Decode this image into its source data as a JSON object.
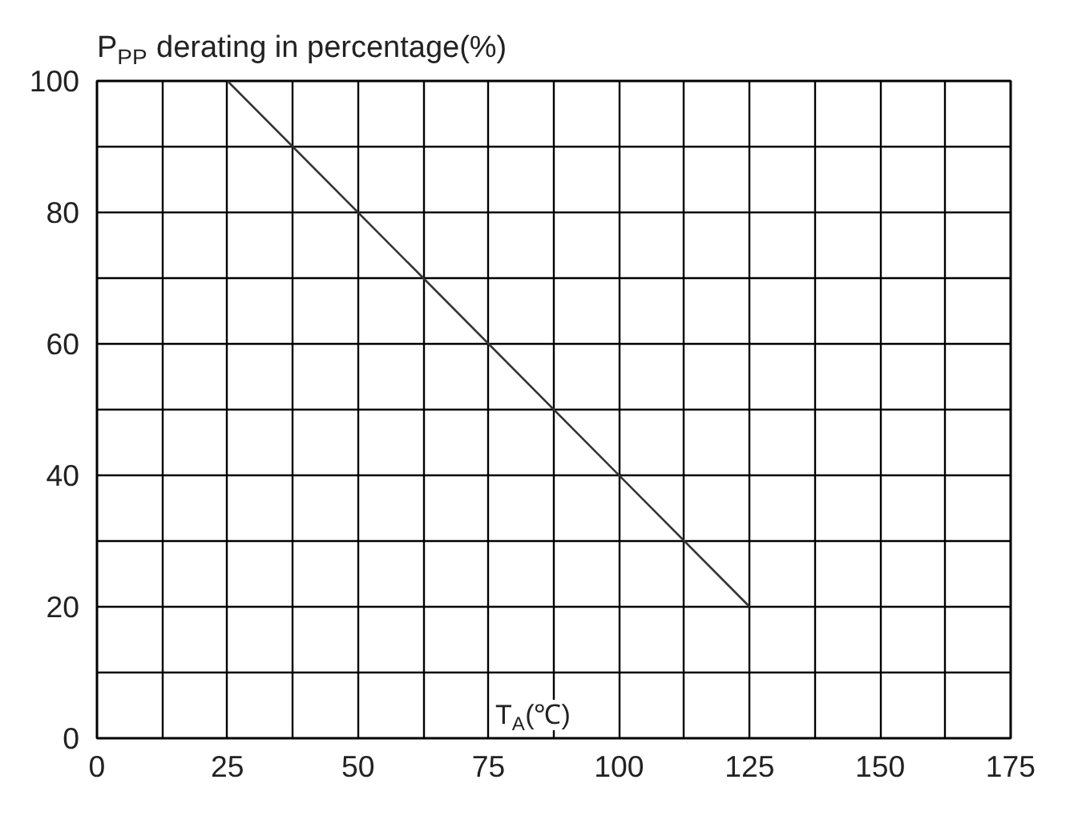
{
  "chart_data": {
    "type": "line",
    "ylabel": "P$_{PP}$ derating in percentage(%)",
    "xlabel": "T$_{A}$(℃)",
    "x": [
      25,
      125
    ],
    "values": [
      100,
      20
    ],
    "color": "#333333",
    "marker": "none",
    "line_style": "solid",
    "grid": true,
    "xlim": [
      0,
      175
    ],
    "xticks": [
      0,
      {
        "value": 12.5,
        "label": null
      },
      25,
      {
        "value": 37.5,
        "label": null
      },
      50,
      {
        "value": 62.5,
        "label": null
      },
      75,
      {
        "value": 87.5,
        "label": null
      },
      100,
      {
        "value": 112.5,
        "label": null
      },
      125,
      {
        "value": 137.5,
        "label": null
      },
      150,
      {
        "value": 162.5,
        "label": null
      },
      175
    ],
    "ylim": [
      0,
      100
    ],
    "yticks": [
      0,
      {
        "value": 10,
        "label": null
      },
      20,
      {
        "value": 30,
        "label": null
      },
      40,
      {
        "value": 50,
        "label": null
      },
      60,
      {
        "value": 70,
        "label": null
      },
      80,
      {
        "value": 90,
        "label": null
      },
      100
    ]
  }
}
